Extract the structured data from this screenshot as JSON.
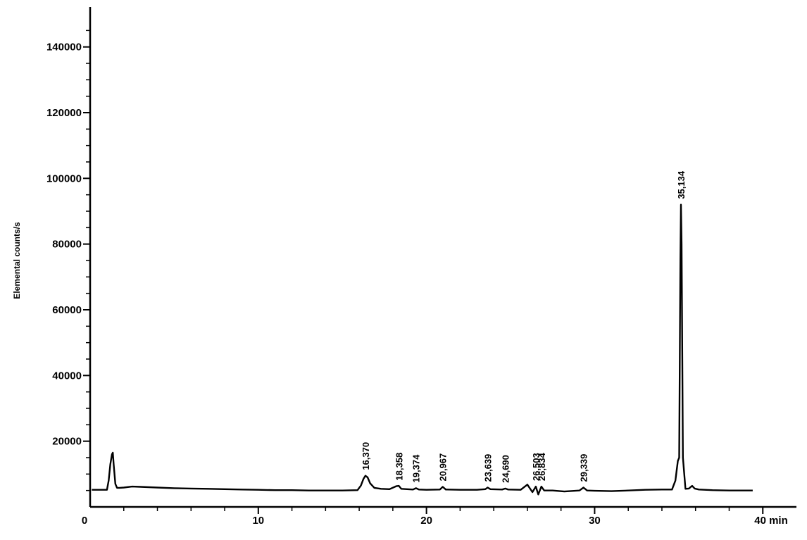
{
  "chart_data": {
    "type": "line",
    "title": "",
    "xlabel": "",
    "ylabel": "Elemental counts/s",
    "x_unit": "min",
    "xlim": [
      0,
      42
    ],
    "ylim": [
      0,
      150000
    ],
    "x_ticks": [
      {
        "value": 0,
        "label": "0"
      },
      {
        "value": 10,
        "label": "10"
      },
      {
        "value": 20,
        "label": "20"
      },
      {
        "value": 30,
        "label": "30"
      },
      {
        "value": 40,
        "label": "40 min"
      }
    ],
    "y_ticks": [
      {
        "value": 20000,
        "label": "20000"
      },
      {
        "value": 40000,
        "label": "40000"
      },
      {
        "value": 60000,
        "label": "60000"
      },
      {
        "value": 80000,
        "label": "80000"
      },
      {
        "value": 100000,
        "label": "100000"
      },
      {
        "value": 120000,
        "label": "120000"
      },
      {
        "value": 140000,
        "label": "140000"
      }
    ],
    "grid": false,
    "legend": "none",
    "peak_labels": [
      {
        "x": 16.37,
        "y": 9500,
        "label": "16,370"
      },
      {
        "x": 18.358,
        "y": 6300,
        "label": "18,358"
      },
      {
        "x": 19.374,
        "y": 5700,
        "label": "19,374"
      },
      {
        "x": 20.967,
        "y": 6100,
        "label": "20,967"
      },
      {
        "x": 23.639,
        "y": 5900,
        "label": "23,639"
      },
      {
        "x": 24.69,
        "y": 5600,
        "label": "24,690"
      },
      {
        "x": 26.503,
        "y": 6200,
        "label": "26,503"
      },
      {
        "x": 26.834,
        "y": 6200,
        "label": "26,834"
      },
      {
        "x": 29.339,
        "y": 5900,
        "label": "29,339"
      },
      {
        "x": 35.134,
        "y": 92000,
        "label": "35,134"
      }
    ],
    "series": [
      {
        "color": "#000000",
        "x": [
          0.1,
          1.0,
          1.1,
          1.2,
          1.3,
          1.35,
          1.4,
          1.5,
          1.6,
          1.75,
          2.0,
          2.5,
          3,
          4,
          5,
          6,
          7,
          8,
          9,
          10,
          11,
          12,
          13,
          14,
          15,
          15.9,
          16.1,
          16.25,
          16.37,
          16.5,
          16.65,
          16.9,
          17.3,
          17.8,
          18.2,
          18.358,
          18.5,
          19.2,
          19.374,
          19.55,
          20.0,
          20.8,
          20.967,
          21.15,
          22.0,
          23.0,
          23.5,
          23.639,
          23.8,
          24.5,
          24.69,
          24.85,
          25.6,
          26.0,
          26.3,
          26.503,
          26.65,
          26.834,
          27.0,
          27.5,
          28.2,
          29.1,
          29.339,
          29.55,
          30.0,
          31,
          32,
          33,
          34,
          34.6,
          34.8,
          34.95,
          35.03,
          35.1,
          35.134,
          35.17,
          35.25,
          35.4,
          35.6,
          35.8,
          35.95,
          36.2,
          37,
          38,
          39,
          39.4
        ],
        "y": [
          5200,
          5200,
          8000,
          13000,
          16000,
          16500,
          13000,
          7000,
          5800,
          5800,
          5900,
          6200,
          6100,
          5900,
          5700,
          5600,
          5500,
          5400,
          5300,
          5200,
          5100,
          5100,
          5000,
          5000,
          5000,
          5100,
          6500,
          8500,
          9500,
          9000,
          7200,
          5800,
          5500,
          5400,
          6300,
          6400,
          5500,
          5300,
          5700,
          5300,
          5200,
          5300,
          6100,
          5300,
          5200,
          5200,
          5400,
          5900,
          5400,
          5300,
          5600,
          5300,
          5200,
          6800,
          4500,
          6200,
          3800,
          6200,
          5000,
          5000,
          4700,
          5000,
          5900,
          5000,
          4900,
          4800,
          5000,
          5200,
          5300,
          5300,
          8000,
          14000,
          15000,
          75000,
          92000,
          80000,
          15000,
          5500,
          5600,
          6400,
          5600,
          5300,
          5100,
          5000,
          5000,
          5000
        ]
      }
    ]
  }
}
